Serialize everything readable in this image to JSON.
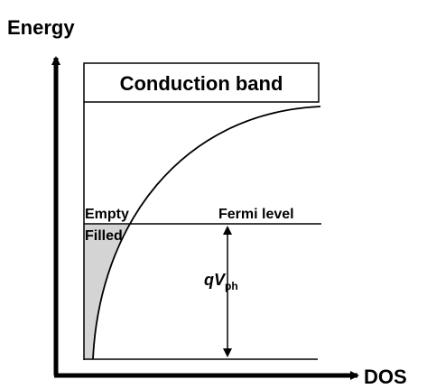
{
  "axes": {
    "y_label": "Energy",
    "x_label": "DOS"
  },
  "conduction_band": "Conduction band",
  "regions": {
    "empty": "Empty",
    "filled": "Filled"
  },
  "fermi_level": "Fermi level",
  "photovoltage": {
    "main": "qV",
    "sub": "ph"
  }
}
